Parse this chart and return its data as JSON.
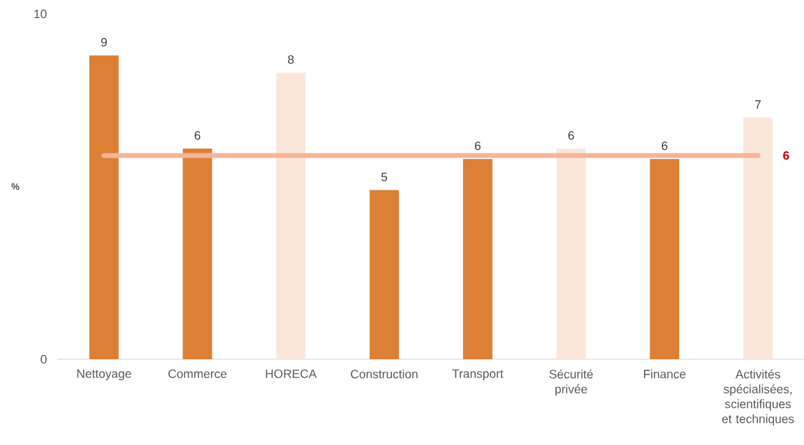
{
  "chart_data": {
    "type": "bar",
    "ylabel": "%",
    "categories": [
      "Nettoyage",
      "Commerce",
      "HORECA",
      "Construction",
      "Transport",
      "Sécurité privée",
      "Finance",
      "Activités spécialisées, scientifiques et techniques"
    ],
    "values": [
      8.8,
      6.1,
      8.3,
      4.9,
      5.8,
      6.1,
      5.8,
      7.0
    ],
    "value_labels": [
      "9",
      "6",
      "8",
      "5",
      "6",
      "6",
      "6",
      "7"
    ],
    "colors": [
      "#db8035",
      "#db8035",
      "#fbe7da",
      "#db8035",
      "#db8035",
      "#fbe7da",
      "#db8035",
      "#fbe7da"
    ],
    "ylim": [
      0,
      10
    ],
    "yticks": [
      0,
      10
    ],
    "grid": false,
    "ref_lines": [
      {
        "axis": "y",
        "value": 5.9,
        "label": "6",
        "color": "#f4b599"
      }
    ]
  }
}
